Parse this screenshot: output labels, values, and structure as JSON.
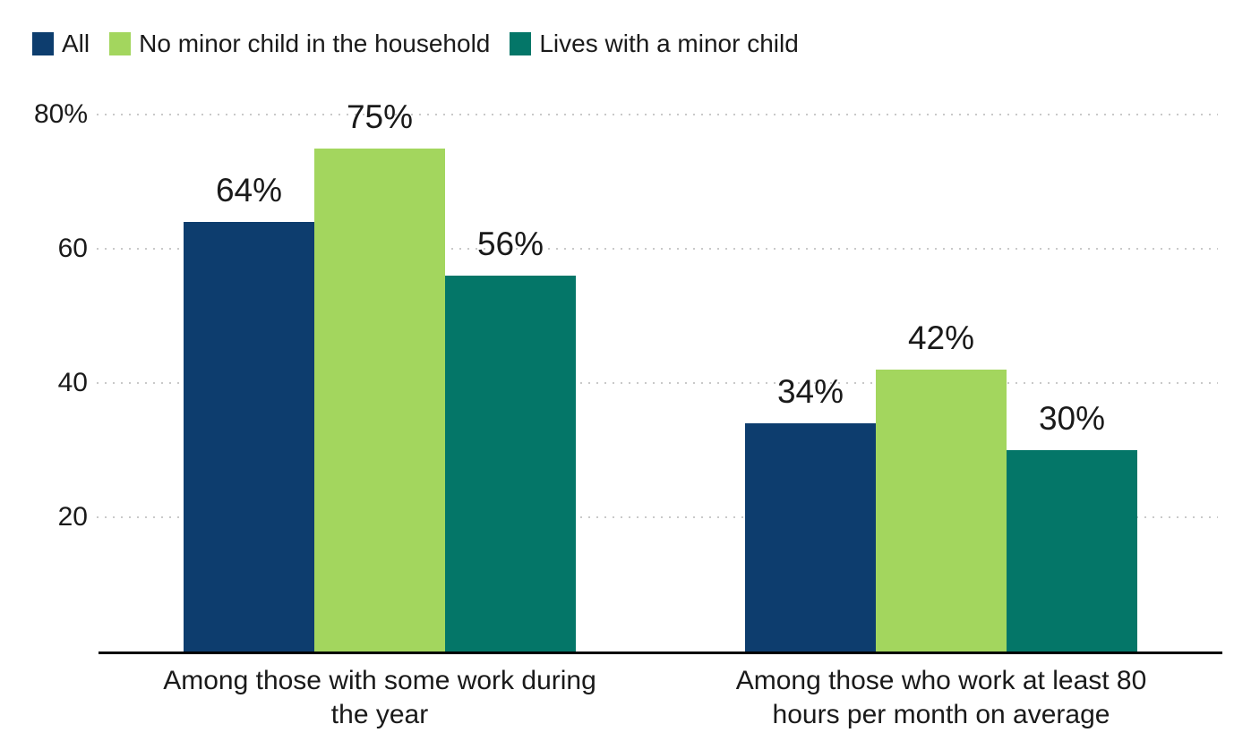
{
  "page": {
    "background_color": "#ffffff",
    "text_color": "#1a1a1a",
    "gridline_color": "#c9c9c9",
    "axis_line_color": "#000000"
  },
  "legend": {
    "position": "top-left",
    "items": [
      {
        "label": "All",
        "color": "#0d3d6e"
      },
      {
        "label": "No minor child in the household",
        "color": "#a3d65e"
      },
      {
        "label": "Lives with a minor child",
        "color": "#047668"
      }
    ]
  },
  "chart_data": {
    "type": "bar",
    "categories": [
      "Among those with some work during\nthe year",
      "Among those who work at least 80\nhours per month on average"
    ],
    "series": [
      {
        "name": "All",
        "color": "#0d3d6e",
        "values": [
          64,
          34
        ]
      },
      {
        "name": "No minor child in the household",
        "color": "#a3d65e",
        "values": [
          75,
          42
        ]
      },
      {
        "name": "Lives with a minor child",
        "color": "#047668",
        "values": [
          56,
          30
        ]
      }
    ],
    "data_labels": [
      [
        "64%",
        "34%"
      ],
      [
        "75%",
        "42%"
      ],
      [
        "56%",
        "30%"
      ]
    ],
    "value_suffix": "%",
    "y_axis": {
      "range": [
        0,
        80
      ],
      "ticks": [
        {
          "value": 20,
          "label": "20"
        },
        {
          "value": 40,
          "label": "40"
        },
        {
          "value": 60,
          "label": "60"
        },
        {
          "value": 80,
          "label": "80%"
        }
      ],
      "gridline_style": "dotted"
    },
    "grid": true,
    "legend_position": "top-left",
    "title": "",
    "xlabel": "",
    "ylabel": ""
  }
}
